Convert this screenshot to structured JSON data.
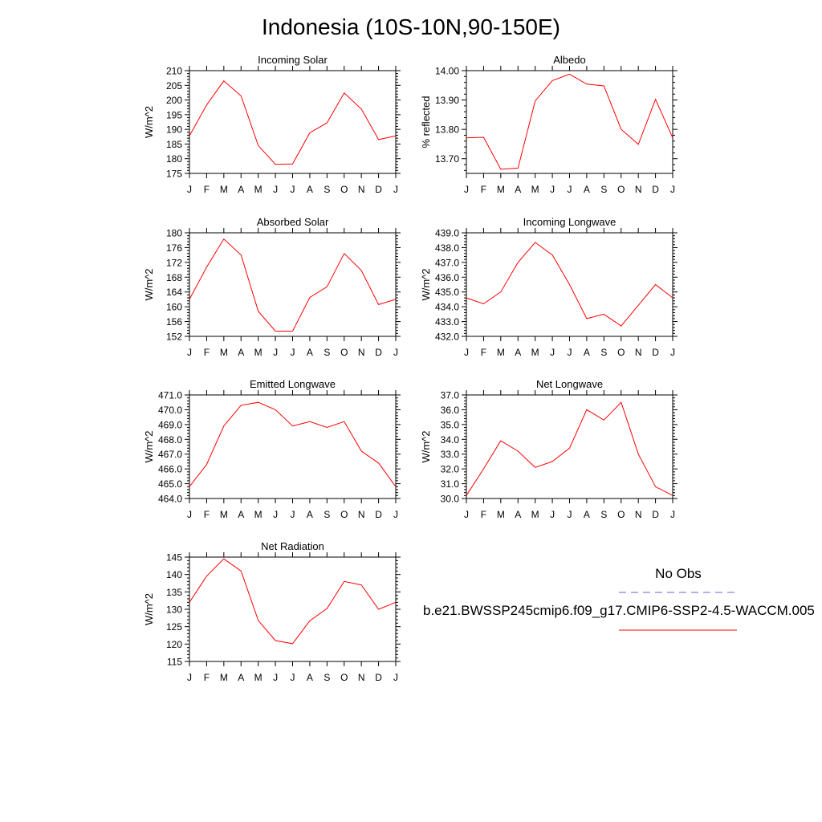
{
  "page_title": "Indonesia (10S-10N,90-150E)",
  "legend": {
    "entries": [
      {
        "label": "No Obs",
        "color": "#6666dd",
        "style": "dashed"
      },
      {
        "label": "b.e21.BWSSP245cmip6.f09_g17.CMIP6-SSP2-4.5-WACCM.005",
        "color": "#ff0000",
        "style": "solid"
      }
    ]
  },
  "chart_data": [
    {
      "type": "line",
      "title": "Incoming Solar",
      "ylabel": "W/m^2",
      "categories": [
        "J",
        "F",
        "M",
        "A",
        "M",
        "J",
        "J",
        "A",
        "S",
        "O",
        "N",
        "D",
        "J"
      ],
      "ylim": [
        175,
        210
      ],
      "yticks": [
        175,
        180,
        185,
        190,
        195,
        200,
        205,
        210
      ],
      "ytick_labels": [
        "175",
        "180",
        "185",
        "190",
        "195",
        "200",
        "205",
        "210"
      ],
      "series": [
        {
          "color": "#ff0000",
          "values": [
            187.8,
            198.3,
            206.5,
            201.4,
            184.5,
            178.1,
            178.2,
            188.8,
            192.2,
            202.4,
            196.9,
            186.5,
            187.8
          ]
        }
      ]
    },
    {
      "type": "line",
      "title": "Albedo",
      "ylabel": "% reflected",
      "categories": [
        "J",
        "F",
        "M",
        "A",
        "M",
        "J",
        "J",
        "A",
        "S",
        "O",
        "N",
        "D",
        "J"
      ],
      "ylim": [
        13.65,
        14.0
      ],
      "yticks": [
        13.7,
        13.8,
        13.9,
        14.0
      ],
      "ytick_labels": [
        "13.70",
        "13.80",
        "13.90",
        "14.00"
      ],
      "series": [
        {
          "color": "#ff0000",
          "values": [
            13.771,
            13.773,
            13.664,
            13.668,
            13.897,
            13.966,
            13.988,
            13.954,
            13.948,
            13.8,
            13.749,
            13.902,
            13.771
          ]
        }
      ]
    },
    {
      "type": "line",
      "title": "Absorbed Solar",
      "ylabel": "W/m^2",
      "categories": [
        "J",
        "F",
        "M",
        "A",
        "M",
        "J",
        "J",
        "A",
        "S",
        "O",
        "N",
        "D",
        "J"
      ],
      "ylim": [
        152,
        180
      ],
      "yticks": [
        152,
        156,
        160,
        164,
        168,
        172,
        176,
        180
      ],
      "ytick_labels": [
        "152",
        "156",
        "160",
        "164",
        "168",
        "172",
        "176",
        "180"
      ],
      "series": [
        {
          "color": "#ff0000",
          "values": [
            162,
            170.7,
            178.3,
            174,
            158.8,
            153.4,
            153.4,
            162.5,
            165.4,
            174.4,
            169.8,
            160.6,
            162
          ]
        }
      ]
    },
    {
      "type": "line",
      "title": "Incoming Longwave",
      "ylabel": "W/m^2",
      "categories": [
        "J",
        "F",
        "M",
        "A",
        "M",
        "J",
        "J",
        "A",
        "S",
        "O",
        "N",
        "D",
        "J"
      ],
      "ylim": [
        432,
        439
      ],
      "yticks": [
        432,
        433,
        434,
        435,
        436,
        437,
        438,
        439
      ],
      "ytick_labels": [
        "432.0",
        "433.0",
        "434.0",
        "435.0",
        "436.0",
        "437.0",
        "438.0",
        "439.0"
      ],
      "series": [
        {
          "color": "#ff0000",
          "values": [
            434.6,
            434.2,
            435.0,
            437.0,
            438.35,
            437.5,
            435.5,
            433.2,
            433.5,
            432.7,
            434.1,
            435.5,
            434.6
          ]
        }
      ]
    },
    {
      "type": "line",
      "title": "Emitted Longwave",
      "ylabel": "W/m^2",
      "categories": [
        "J",
        "F",
        "M",
        "A",
        "M",
        "J",
        "J",
        "A",
        "S",
        "O",
        "N",
        "D",
        "J"
      ],
      "ylim": [
        464,
        471
      ],
      "yticks": [
        464,
        465,
        466,
        467,
        468,
        469,
        470,
        471
      ],
      "ytick_labels": [
        "464.0",
        "465.0",
        "466.0",
        "467.0",
        "468.0",
        "469.0",
        "470.0",
        "471.0"
      ],
      "series": [
        {
          "color": "#ff0000",
          "values": [
            464.8,
            466.3,
            468.9,
            470.3,
            470.5,
            470.0,
            468.9,
            469.2,
            468.8,
            469.2,
            467.2,
            466.4,
            464.8
          ]
        }
      ]
    },
    {
      "type": "line",
      "title": "Net Longwave",
      "ylabel": "W/m^2",
      "categories": [
        "J",
        "F",
        "M",
        "A",
        "M",
        "J",
        "J",
        "A",
        "S",
        "O",
        "N",
        "D",
        "J"
      ],
      "ylim": [
        30,
        37
      ],
      "yticks": [
        30,
        31,
        32,
        33,
        34,
        35,
        36,
        37
      ],
      "ytick_labels": [
        "30.0",
        "31.0",
        "32.0",
        "33.0",
        "34.0",
        "35.0",
        "36.0",
        "37.0"
      ],
      "series": [
        {
          "color": "#ff0000",
          "values": [
            30.2,
            32.0,
            33.9,
            33.2,
            32.1,
            32.5,
            33.4,
            36.0,
            35.3,
            36.5,
            33.0,
            30.8,
            30.2
          ]
        }
      ]
    },
    {
      "type": "line",
      "title": "Net Radiation",
      "ylabel": "W/m^2",
      "categories": [
        "J",
        "F",
        "M",
        "A",
        "M",
        "J",
        "J",
        "A",
        "S",
        "O",
        "N",
        "D",
        "J"
      ],
      "ylim": [
        115,
        145
      ],
      "yticks": [
        115,
        120,
        125,
        130,
        135,
        140,
        145
      ],
      "ytick_labels": [
        "115",
        "120",
        "125",
        "130",
        "135",
        "140",
        "145"
      ],
      "series": [
        {
          "color": "#ff0000",
          "values": [
            132,
            139.5,
            144.5,
            141,
            126.8,
            121,
            120.1,
            126.7,
            130.2,
            138,
            137,
            130,
            132
          ]
        }
      ]
    }
  ]
}
